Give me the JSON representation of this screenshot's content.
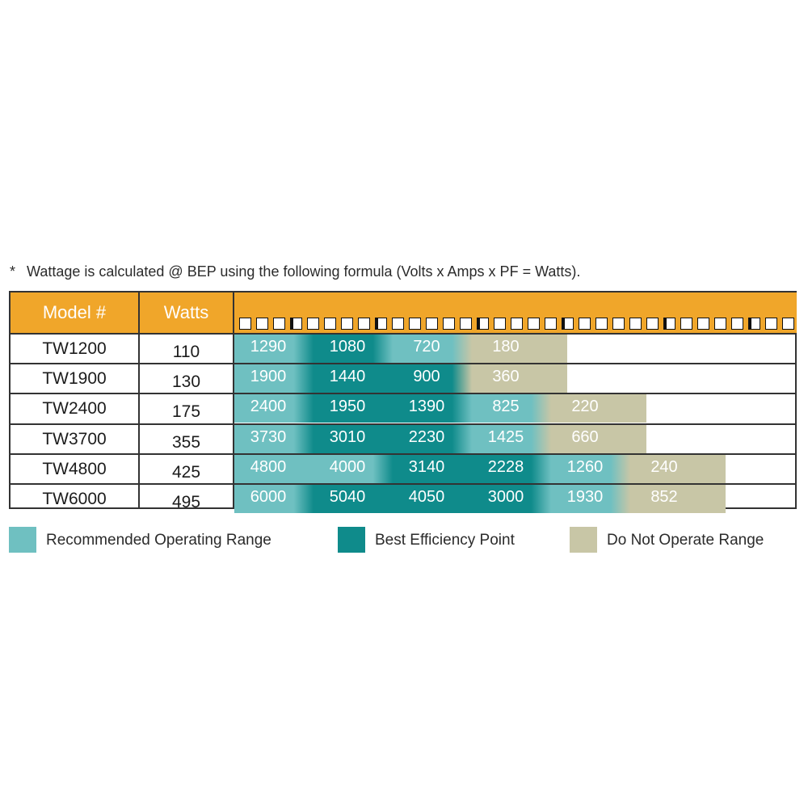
{
  "footnote": {
    "star": "*",
    "text": "Wattage is calculated @ BEP using the following formula   (Volts x Amps x PF = Watts)."
  },
  "colors": {
    "header": "#f0a62a",
    "recommended": "#6fc0c1",
    "bep": "#0f8b8b",
    "do_not_operate": "#c8c6a6"
  },
  "headers": {
    "model": "Model #",
    "watts": "Watts"
  },
  "legend": {
    "recommended": "Recommended Operating Range",
    "bep": "Best Efficiency Point",
    "do_not_operate": "Do Not Operate Range"
  },
  "chart_data": {
    "type": "table",
    "columns": [
      "Model #",
      "Watts"
    ],
    "rows": [
      {
        "model": "TW1200",
        "watts": "110",
        "values": [
          "1290",
          "1080",
          "720",
          "180"
        ],
        "zones": [
          "recommended",
          "bep",
          "recommended",
          "do_not_operate"
        ]
      },
      {
        "model": "TW1900",
        "watts": "130",
        "values": [
          "1900",
          "1440",
          "900",
          "360"
        ],
        "zones": [
          "recommended",
          "bep",
          "bep",
          "do_not_operate"
        ]
      },
      {
        "model": "TW2400",
        "watts": "175",
        "values": [
          "2400",
          "1950",
          "1390",
          "825",
          "220"
        ],
        "zones": [
          "recommended",
          "bep",
          "bep",
          "recommended",
          "do_not_operate"
        ]
      },
      {
        "model": "TW3700",
        "watts": "355",
        "values": [
          "3730",
          "3010",
          "2230",
          "1425",
          "660"
        ],
        "zones": [
          "recommended",
          "bep",
          "bep",
          "recommended",
          "do_not_operate"
        ]
      },
      {
        "model": "TW4800",
        "watts": "425",
        "values": [
          "4800",
          "4000",
          "3140",
          "2228",
          "1260",
          "240"
        ],
        "zones": [
          "recommended",
          "recommended",
          "bep",
          "bep",
          "recommended",
          "do_not_operate"
        ]
      },
      {
        "model": "TW6000",
        "watts": "495",
        "values": [
          "6000",
          "5040",
          "4050",
          "3000",
          "1930",
          "852"
        ],
        "zones": [
          "recommended",
          "bep",
          "bep",
          "bep",
          "recommended",
          "do_not_operate"
        ]
      }
    ]
  }
}
